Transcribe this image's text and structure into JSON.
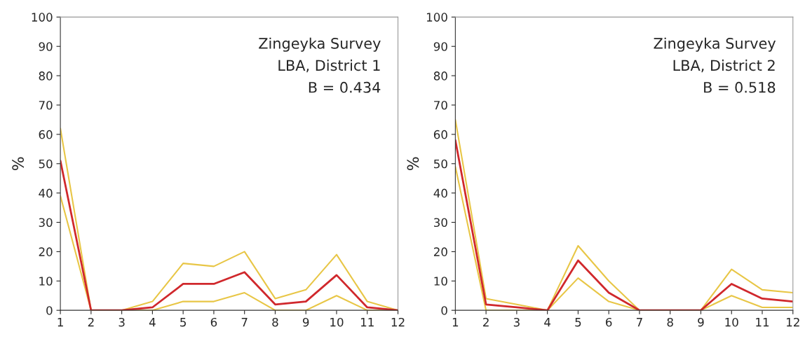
{
  "chart_data": [
    {
      "type": "line",
      "ylabel": "%",
      "x": [
        1,
        2,
        3,
        4,
        5,
        6,
        7,
        8,
        9,
        10,
        11,
        12
      ],
      "xlim": [
        1,
        12
      ],
      "xticks": [
        1,
        2,
        3,
        4,
        5,
        6,
        7,
        8,
        9,
        10,
        11,
        12
      ],
      "ylim": [
        0,
        100
      ],
      "yticks": [
        0,
        10,
        20,
        30,
        40,
        50,
        60,
        70,
        80,
        90,
        100
      ],
      "grid": false,
      "legend": false,
      "annotations": [
        "Zingeyka Survey",
        "LBA, District 1",
        "B = 0.434"
      ],
      "series": [
        {
          "color": "#e8c646",
          "values": [
            62,
            0,
            0,
            3,
            16,
            15,
            20,
            4,
            7,
            19,
            3,
            0
          ]
        },
        {
          "color": "#e8c646",
          "values": [
            39,
            0,
            0,
            0,
            3,
            3,
            6,
            0,
            0,
            5,
            0,
            0
          ]
        },
        {
          "color": "#d0282c",
          "values": [
            51,
            0,
            0,
            1,
            9,
            9,
            13,
            2,
            3,
            12,
            1,
            0
          ]
        }
      ]
    },
    {
      "type": "line",
      "ylabel": "%",
      "x": [
        1,
        2,
        3,
        4,
        5,
        6,
        7,
        8,
        9,
        10,
        11,
        12
      ],
      "xlim": [
        1,
        12
      ],
      "xticks": [
        1,
        2,
        3,
        4,
        5,
        6,
        7,
        8,
        9,
        10,
        11,
        12
      ],
      "ylim": [
        0,
        100
      ],
      "yticks": [
        0,
        10,
        20,
        30,
        40,
        50,
        60,
        70,
        80,
        90,
        100
      ],
      "grid": false,
      "legend": false,
      "annotations": [
        "Zingeyka Survey",
        "LBA, District 2",
        "B = 0.518"
      ],
      "series": [
        {
          "color": "#e8c646",
          "values": [
            65,
            4,
            2,
            0,
            22,
            10,
            0,
            0,
            0,
            14,
            7,
            6
          ]
        },
        {
          "color": "#e8c646",
          "values": [
            49,
            0,
            0,
            0,
            11,
            3,
            0,
            0,
            0,
            5,
            1,
            1
          ]
        },
        {
          "color": "#d0282c",
          "values": [
            58,
            2,
            1,
            0,
            17,
            6,
            0,
            0,
            0,
            9,
            4,
            3
          ]
        }
      ]
    }
  ]
}
